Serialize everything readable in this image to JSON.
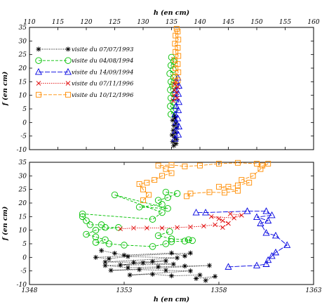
{
  "chart_data": [
    {
      "type": "scatter",
      "xlabel": "h (en cm)",
      "ylabel": "f (en cm)",
      "xlim": [
        110,
        160
      ],
      "ylim": [
        -10,
        35
      ],
      "xticks": [
        110,
        115,
        120,
        125,
        130,
        135,
        140,
        145,
        150,
        155,
        160
      ],
      "yticks": [
        -10,
        -5,
        0,
        5,
        10,
        15,
        20,
        25,
        30,
        35
      ],
      "x_axis_position": "top",
      "grid": false,
      "legend_position": "top-left",
      "series": [
        {
          "name": "visite du 07/07/1993",
          "marker": "star",
          "color": "#000000",
          "dash": "1,1.5",
          "points": [
            [
              135.4,
              -8.5
            ],
            [
              135.8,
              -7.8
            ],
            [
              135.2,
              -7.0
            ],
            [
              135.9,
              -6.2
            ],
            [
              135.5,
              -5.5
            ],
            [
              135.1,
              -4.6
            ],
            [
              135.7,
              -3.8
            ],
            [
              135.3,
              -2.9
            ],
            [
              135.9,
              -2.0
            ],
            [
              135.4,
              -1.1
            ],
            [
              135.8,
              -0.2
            ],
            [
              135.2,
              0.8
            ],
            [
              135.6,
              1.6
            ],
            [
              135.5,
              2.4
            ]
          ]
        },
        {
          "name": "visite du 04/08/1994",
          "marker": "circle",
          "color": "#00c000",
          "dash": "4,2",
          "points": [
            [
              134.9,
              3.0
            ],
            [
              135.4,
              4.5
            ],
            [
              134.8,
              6.0
            ],
            [
              135.3,
              7.5
            ],
            [
              134.9,
              9.0
            ],
            [
              135.4,
              10.5
            ],
            [
              134.8,
              12.0
            ],
            [
              135.2,
              13.5
            ],
            [
              134.9,
              15.0
            ],
            [
              135.4,
              16.5
            ],
            [
              134.7,
              18.0
            ],
            [
              135.3,
              19.5
            ],
            [
              134.9,
              21.0
            ],
            [
              135.4,
              22.5
            ],
            [
              135.0,
              24.0
            ]
          ]
        },
        {
          "name": "visite du 14/09/1994",
          "marker": "triangle",
          "color": "#0000e0",
          "dash": "7,2",
          "points": [
            [
              135.6,
              -6.0
            ],
            [
              136.2,
              -4.5
            ],
            [
              135.7,
              -3.0
            ],
            [
              136.3,
              -1.5
            ],
            [
              135.8,
              0.0
            ],
            [
              136.1,
              1.5
            ],
            [
              135.6,
              3.0
            ],
            [
              136.2,
              4.5
            ],
            [
              135.8,
              6.0
            ],
            [
              136.3,
              7.5
            ],
            [
              135.7,
              9.0
            ],
            [
              136.2,
              10.5
            ],
            [
              135.8,
              12.0
            ],
            [
              136.3,
              13.5
            ],
            [
              135.9,
              15.0
            ],
            [
              136.1,
              16.5
            ]
          ]
        },
        {
          "name": "visite du 07/11/1996",
          "marker": "x",
          "color": "#e00000",
          "dash": "1.5,1.5",
          "points": [
            [
              135.3,
              8.0
            ],
            [
              136.0,
              9.0
            ],
            [
              135.4,
              10.0
            ],
            [
              135.9,
              11.0
            ],
            [
              135.5,
              12.0
            ],
            [
              136.1,
              13.0
            ],
            [
              135.6,
              14.0
            ],
            [
              135.8,
              15.0
            ]
          ]
        },
        {
          "name": "visite du 10/12/1996",
          "marker": "square",
          "color": "#ff8c00",
          "dash": "5,2",
          "points": [
            [
              135.5,
              14.0
            ],
            [
              136.1,
              15.5
            ],
            [
              135.6,
              17.0
            ],
            [
              136.2,
              18.5
            ],
            [
              135.7,
              20.0
            ],
            [
              136.1,
              21.5
            ],
            [
              135.6,
              23.0
            ],
            [
              136.2,
              24.5
            ],
            [
              135.7,
              26.0
            ],
            [
              136.1,
              27.5
            ],
            [
              135.6,
              29.0
            ],
            [
              136.2,
              30.5
            ],
            [
              135.7,
              32.0
            ],
            [
              136.1,
              33.5
            ],
            [
              135.9,
              34.5
            ]
          ]
        }
      ]
    },
    {
      "type": "scatter",
      "xlabel": "h (en cm)",
      "ylabel": "f (en cm)",
      "xlim": [
        1348,
        1363
      ],
      "ylim": [
        -10,
        35
      ],
      "xticks": [
        1348,
        1353,
        1358,
        1363
      ],
      "yticks": [
        -10,
        -5,
        0,
        5,
        10,
        15,
        20,
        25,
        30,
        35
      ],
      "grid": false,
      "series": [
        {
          "name": "visite du 07/07/1993",
          "marker": "star",
          "color": "#000000",
          "dash": "1,1.5",
          "points": [
            [
              1351.8,
              2.5
            ],
            [
              1352.5,
              1.5
            ],
            [
              1353.0,
              0.8
            ],
            [
              1355.5,
              1.6
            ],
            [
              1356.2,
              0.5
            ],
            [
              1356.5,
              1.6
            ],
            [
              1351.5,
              0.0
            ],
            [
              1352.2,
              -0.5
            ],
            [
              1353.2,
              0.3
            ],
            [
              1355.8,
              -0.2
            ],
            [
              1352.0,
              -1.7
            ],
            [
              1353.5,
              -1.8
            ],
            [
              1354.5,
              -1.5
            ],
            [
              1355.2,
              -1.3
            ],
            [
              1352.8,
              -2.8
            ],
            [
              1354.0,
              -2.0
            ],
            [
              1355.6,
              -2.5
            ],
            [
              1352.0,
              -3.0
            ],
            [
              1353.2,
              -3.8
            ],
            [
              1354.8,
              -3.5
            ],
            [
              1356.2,
              -3.2
            ],
            [
              1357.5,
              -3.0
            ],
            [
              1352.3,
              -4.8
            ],
            [
              1353.8,
              -4.5
            ],
            [
              1355.2,
              -4.8
            ],
            [
              1356.5,
              -5.0
            ],
            [
              1353.3,
              -6.5
            ],
            [
              1354.5,
              -6.2
            ],
            [
              1355.5,
              -6.8
            ],
            [
              1357.0,
              -6.5
            ],
            [
              1356.8,
              -7.8
            ],
            [
              1357.8,
              -7.0
            ],
            [
              1357.3,
              -8.5
            ]
          ]
        },
        {
          "name": "visite du 04/08/1994",
          "marker": "circle",
          "color": "#00c000",
          "dash": "4,2",
          "points": [
            [
              1355.2,
              24.0
            ],
            [
              1355.8,
              23.5
            ],
            [
              1355.3,
              22.0
            ],
            [
              1354.8,
              21.0
            ],
            [
              1355.0,
              19.5
            ],
            [
              1353.8,
              18.5
            ],
            [
              1355.3,
              18.0
            ],
            [
              1352.5,
              23.0
            ],
            [
              1355.0,
              16.5
            ],
            [
              1354.5,
              14.0
            ],
            [
              1350.8,
              16.0
            ],
            [
              1350.8,
              15.0
            ],
            [
              1351.0,
              13.5
            ],
            [
              1351.2,
              12.0
            ],
            [
              1351.8,
              12.0
            ],
            [
              1352.0,
              11.0
            ],
            [
              1352.7,
              11.0
            ],
            [
              1351.5,
              10.0
            ],
            [
              1351.0,
              8.5
            ],
            [
              1351.5,
              7.5
            ],
            [
              1352.0,
              6.5
            ],
            [
              1351.5,
              5.5
            ],
            [
              1352.2,
              5.0
            ],
            [
              1353.0,
              4.5
            ],
            [
              1354.5,
              4.0
            ],
            [
              1355.2,
              5.0
            ],
            [
              1355.5,
              5.8
            ],
            [
              1356.2,
              6.0
            ],
            [
              1356.6,
              6.2
            ],
            [
              1356.4,
              6.5
            ],
            [
              1355.5,
              6.8
            ],
            [
              1354.8,
              8.0
            ],
            [
              1355.4,
              9.5
            ]
          ]
        },
        {
          "name": "visite du 14/09/1994",
          "marker": "triangle",
          "color": "#0000e0",
          "dash": "7,2",
          "points": [
            [
              1358.5,
              -3.5
            ],
            [
              1360.0,
              -3.0
            ],
            [
              1360.5,
              -2.5
            ],
            [
              1360.6,
              -1.0
            ],
            [
              1360.8,
              0.5
            ],
            [
              1361.0,
              1.8
            ],
            [
              1361.6,
              4.5
            ],
            [
              1361.0,
              8.0
            ],
            [
              1360.5,
              9.0
            ],
            [
              1360.2,
              12.5
            ],
            [
              1360.6,
              13.5
            ],
            [
              1360.0,
              14.8
            ],
            [
              1360.8,
              15.5
            ],
            [
              1360.5,
              17.0
            ],
            [
              1359.5,
              17.0
            ],
            [
              1357.3,
              16.5
            ],
            [
              1356.8,
              16.5
            ]
          ]
        },
        {
          "name": "visite du 07/11/1996",
          "marker": "x",
          "color": "#e00000",
          "dash": "1.5,1.5",
          "points": [
            [
              1352.8,
              10.5
            ],
            [
              1353.5,
              10.8
            ],
            [
              1354.2,
              10.8
            ],
            [
              1355.0,
              10.8
            ],
            [
              1355.8,
              11.0
            ],
            [
              1356.5,
              11.2
            ],
            [
              1357.2,
              11.5
            ],
            [
              1357.8,
              12.0
            ],
            [
              1358.2,
              11.0
            ],
            [
              1358.5,
              12.5
            ],
            [
              1358.2,
              13.5
            ],
            [
              1358.0,
              14.2
            ],
            [
              1357.6,
              15.0
            ],
            [
              1358.8,
              14.5
            ],
            [
              1359.2,
              15.5
            ],
            [
              1358.6,
              16.0
            ]
          ]
        },
        {
          "name": "visite du 10/12/1996",
          "marker": "square",
          "color": "#ff8c00",
          "dash": "5,2",
          "points": [
            [
              1354.0,
              21.0
            ],
            [
              1354.3,
              23.0
            ],
            [
              1354.0,
              25.0
            ],
            [
              1353.8,
              27.0
            ],
            [
              1354.2,
              27.5
            ],
            [
              1354.6,
              28.5
            ],
            [
              1355.0,
              30.0
            ],
            [
              1355.5,
              31.0
            ],
            [
              1355.2,
              32.5
            ],
            [
              1354.8,
              33.8
            ],
            [
              1355.5,
              34.0
            ],
            [
              1356.2,
              33.5
            ],
            [
              1357.0,
              33.8
            ],
            [
              1358.0,
              34.5
            ],
            [
              1359.0,
              34.8
            ],
            [
              1360.0,
              34.5
            ],
            [
              1360.3,
              33.8
            ],
            [
              1360.6,
              34.5
            ],
            [
              1360.2,
              32.5
            ],
            [
              1359.8,
              30.0
            ],
            [
              1359.2,
              28.5
            ],
            [
              1359.6,
              27.5
            ],
            [
              1359.0,
              26.5
            ],
            [
              1358.5,
              26.0
            ],
            [
              1358.0,
              26.0
            ],
            [
              1359.0,
              24.5
            ],
            [
              1358.3,
              23.8
            ],
            [
              1357.5,
              24.0
            ],
            [
              1356.5,
              23.5
            ],
            [
              1356.3,
              22.5
            ]
          ]
        }
      ]
    }
  ]
}
